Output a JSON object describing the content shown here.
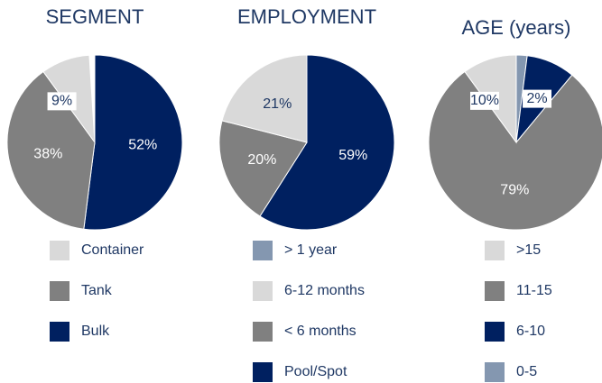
{
  "chart_data": [
    {
      "type": "pie",
      "title": "SEGMENT",
      "categories": [
        "Container",
        "Tank",
        "Bulk"
      ],
      "values": [
        9,
        38,
        52
      ],
      "value_labels": [
        "9%",
        "38%",
        "52%"
      ],
      "colors": [
        "#d9d9d9",
        "#808080",
        "#002060"
      ]
    },
    {
      "type": "pie",
      "title": "EMPLOYMENT",
      "categories": [
        "> 1 year",
        "6-12 months",
        "< 6 months",
        "Pool/Spot"
      ],
      "values": [
        0,
        21,
        20,
        59
      ],
      "value_labels": [
        null,
        "21%",
        "20%",
        "59%"
      ],
      "colors": [
        "#8497b0",
        "#d9d9d9",
        "#808080",
        "#002060"
      ]
    },
    {
      "type": "pie",
      "title": "AGE (years)",
      "categories": [
        ">15",
        "11-15",
        "6-10",
        "0-5"
      ],
      "values": [
        10,
        79,
        9,
        2
      ],
      "value_labels": [
        "10%",
        "79%",
        null,
        "2%"
      ],
      "colors": [
        "#d9d9d9",
        "#808080",
        "#002060",
        "#8497b0"
      ]
    }
  ]
}
